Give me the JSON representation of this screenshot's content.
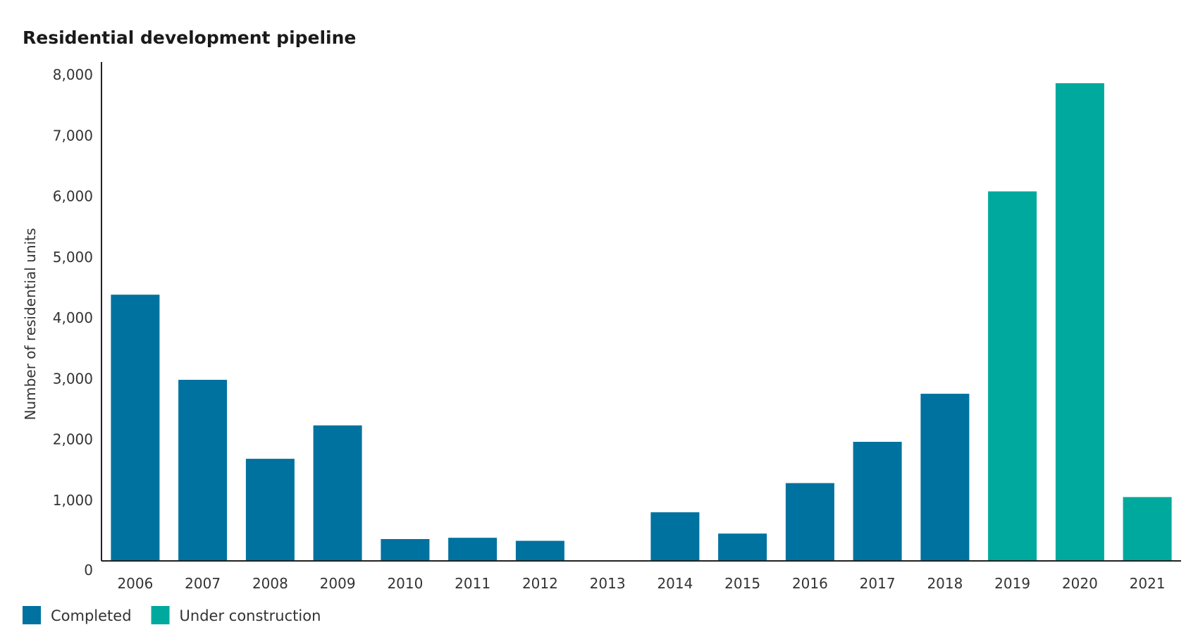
{
  "chart_data": {
    "type": "bar",
    "title": "Residential development pipeline",
    "ylabel": "Number of residential units",
    "xlabel": "",
    "ylim": [
      0,
      8000
    ],
    "yticks": [
      0,
      1000,
      2000,
      3000,
      4000,
      5000,
      6000,
      7000,
      8000
    ],
    "ytick_labels": [
      "0",
      "1,000",
      "2,000",
      "3,000",
      "4,000",
      "5,000",
      "6,000",
      "7,000",
      "8,000"
    ],
    "categories": [
      "2006",
      "2007",
      "2008",
      "2009",
      "2010",
      "2011",
      "2012",
      "2013",
      "2014",
      "2015",
      "2016",
      "2017",
      "2018",
      "2019",
      "2020",
      "2021"
    ],
    "values": [
      4380,
      2980,
      1680,
      2230,
      360,
      380,
      330,
      0,
      800,
      450,
      1280,
      1960,
      2750,
      6080,
      7860,
      1050
    ],
    "bar_series": [
      "Completed",
      "Completed",
      "Completed",
      "Completed",
      "Completed",
      "Completed",
      "Completed",
      "Completed",
      "Completed",
      "Completed",
      "Completed",
      "Completed",
      "Completed",
      "Under construction",
      "Under construction",
      "Under construction"
    ],
    "legend": [
      {
        "name": "Completed",
        "color": "#00729f"
      },
      {
        "name": "Under construction",
        "color": "#00a99d"
      }
    ],
    "legend_position": "bottom-left",
    "grid": false
  }
}
